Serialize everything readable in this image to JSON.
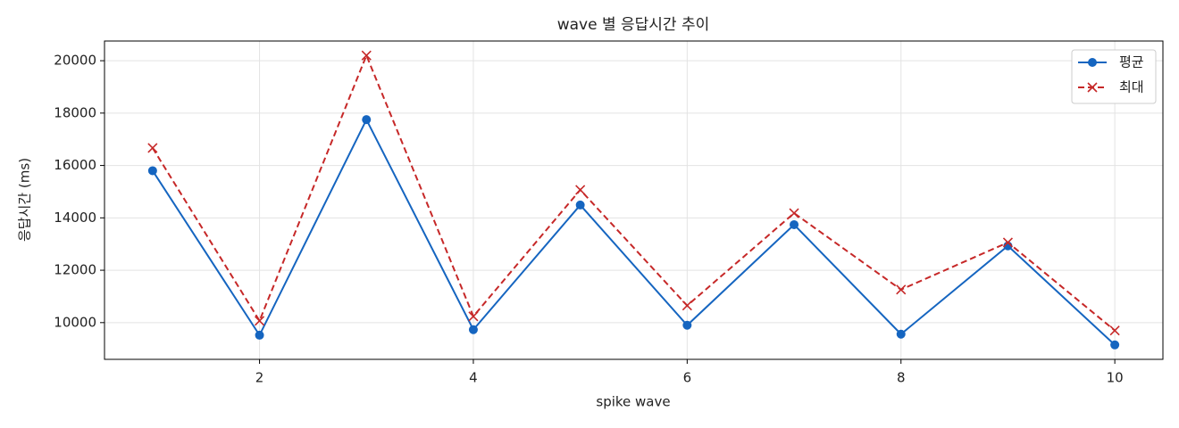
{
  "chart_data": {
    "type": "line",
    "title": "wave 별 응답시간 추이",
    "x_label": "spike wave",
    "y_label": "응답시간 (ms)",
    "x": [
      1,
      2,
      3,
      4,
      5,
      6,
      7,
      8,
      9,
      10
    ],
    "series": [
      {
        "name": "평균",
        "color": "#1565c0",
        "marker": "o",
        "linestyle": "solid",
        "values": [
          15800,
          9520,
          17750,
          9730,
          14490,
          9900,
          13740,
          9560,
          12930,
          9150
        ]
      },
      {
        "name": "최대",
        "color": "#c62828",
        "marker": "x",
        "linestyle": "dashed",
        "values": [
          16670,
          10070,
          20200,
          10240,
          15070,
          10650,
          14180,
          11260,
          13060,
          9700
        ]
      }
    ],
    "xlim": [
      0.55,
      10.45
    ],
    "xticks": [
      2,
      4,
      6,
      8,
      10
    ],
    "ylim": [
      8598,
      20752
    ],
    "yticks": [
      10000,
      12000,
      14000,
      16000,
      18000,
      20000
    ],
    "grid": true,
    "legend": "upper right"
  }
}
